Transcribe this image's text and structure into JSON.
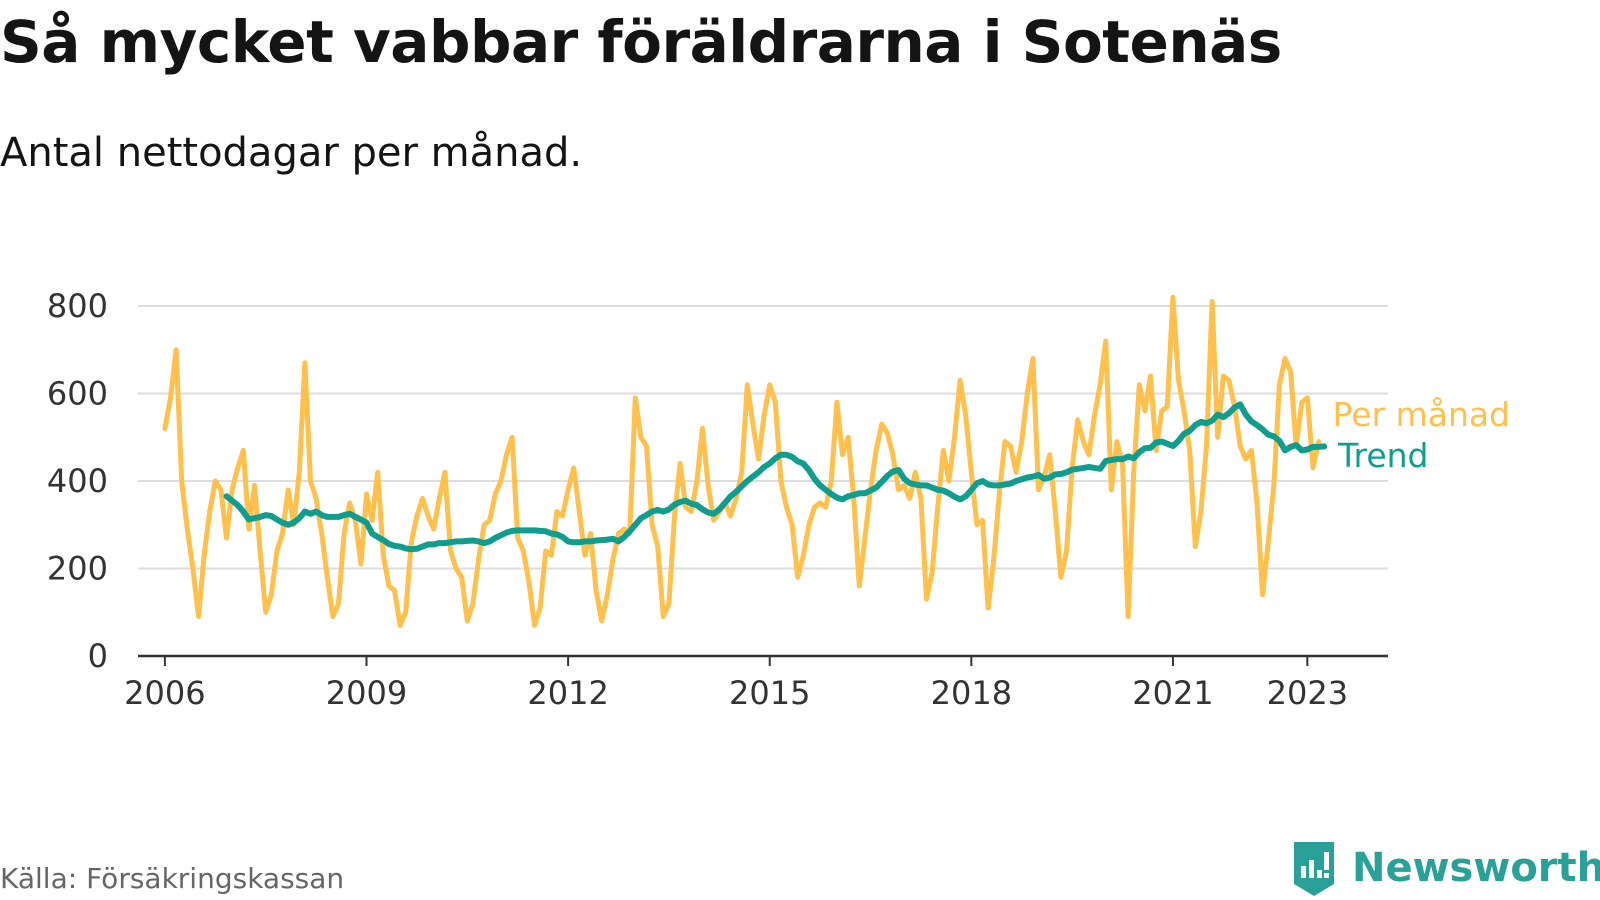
{
  "title": "Så mycket vabbar föräldrarna i Sotenäs",
  "subtitle": "Antal nettodagar per månad.",
  "source": "Källa: Försäkringskassan",
  "brand": "Newsworthy",
  "colors": {
    "monthly": "#FFC04D",
    "trend": "#109D8E",
    "grid": "#DDDDDD",
    "axis": "#333333",
    "brand": "#2AA198"
  },
  "chart_data": {
    "type": "line",
    "x_unit": "year",
    "xlim": [
      2005.6,
      2024.2
    ],
    "ylim": [
      0,
      800
    ],
    "y_ticks": [
      0,
      200,
      400,
      600,
      800
    ],
    "y_tick_labels": [
      "0",
      "200",
      "400",
      "600",
      "800"
    ],
    "x_ticks": [
      2006,
      2009,
      2012,
      2015,
      2018,
      2021,
      2023
    ],
    "x_tick_labels": [
      "2006",
      "2009",
      "2012",
      "2015",
      "2018",
      "2021",
      "2023"
    ],
    "grid": "horizontal",
    "legend_position": "right, at line ends",
    "series": [
      {
        "name": "Per månad",
        "color": "#FFC04D",
        "start_year": 2006,
        "step_months": 1,
        "values": [
          520,
          590,
          700,
          400,
          290,
          200,
          90,
          230,
          330,
          400,
          380,
          270,
          380,
          430,
          470,
          290,
          390,
          240,
          100,
          140,
          240,
          280,
          380,
          300,
          420,
          670,
          400,
          360,
          280,
          180,
          90,
          120,
          280,
          350,
          310,
          210,
          370,
          310,
          420,
          230,
          160,
          150,
          70,
          100,
          260,
          320,
          360,
          320,
          290,
          360,
          420,
          240,
          200,
          180,
          80,
          120,
          220,
          300,
          310,
          370,
          400,
          460,
          500,
          270,
          240,
          170,
          70,
          110,
          240,
          230,
          330,
          320,
          380,
          430,
          330,
          230,
          280,
          150,
          80,
          140,
          220,
          280,
          290,
          280,
          590,
          500,
          480,
          300,
          250,
          90,
          120,
          320,
          440,
          340,
          330,
          400,
          520,
          390,
          310,
          330,
          350,
          320,
          360,
          420,
          620,
          530,
          450,
          550,
          620,
          580,
          400,
          340,
          300,
          180,
          230,
          300,
          340,
          350,
          340,
          400,
          580,
          460,
          500,
          360,
          160,
          270,
          380,
          470,
          530,
          510,
          460,
          380,
          390,
          360,
          420,
          360,
          130,
          190,
          340,
          470,
          400,
          500,
          630,
          550,
          420,
          300,
          310,
          110,
          220,
          370,
          490,
          480,
          420,
          490,
          600,
          680,
          380,
          410,
          460,
          330,
          180,
          240,
          430,
          540,
          490,
          460,
          550,
          620,
          720,
          380,
          490,
          440,
          90,
          420,
          620,
          560,
          640,
          470,
          560,
          570,
          820,
          630,
          560,
          470,
          250,
          330,
          480,
          810,
          500,
          640,
          630,
          570,
          480,
          450,
          470,
          350,
          140,
          260,
          390,
          620,
          680,
          650,
          480,
          580,
          590,
          430,
          490
        ]
      },
      {
        "name": "Trend",
        "color": "#109D8E",
        "start_year": 2006.917,
        "step_months": 1,
        "values": [
          365,
          355,
          345,
          330,
          312,
          315,
          318,
          322,
          320,
          312,
          305,
          300,
          305,
          315,
          330,
          325,
          330,
          322,
          318,
          318,
          318,
          322,
          325,
          318,
          312,
          305,
          280,
          272,
          265,
          256,
          252,
          250,
          246,
          244,
          245,
          250,
          255,
          255,
          258,
          258,
          260,
          262,
          262,
          263,
          264,
          262,
          258,
          262,
          270,
          276,
          282,
          286,
          287,
          287,
          287,
          287,
          286,
          285,
          280,
          278,
          272,
          262,
          260,
          260,
          262,
          262,
          264,
          265,
          266,
          268,
          262,
          272,
          285,
          300,
          315,
          322,
          330,
          334,
          330,
          335,
          346,
          352,
          355,
          348,
          345,
          335,
          328,
          325,
          335,
          350,
          365,
          375,
          388,
          400,
          410,
          420,
          432,
          440,
          452,
          460,
          460,
          455,
          445,
          440,
          425,
          405,
          390,
          380,
          370,
          362,
          358,
          365,
          368,
          372,
          372,
          378,
          385,
          398,
          412,
          422,
          425,
          405,
          395,
          392,
          390,
          390,
          385,
          380,
          378,
          372,
          364,
          358,
          365,
          380,
          395,
          400,
          392,
          390,
          390,
          392,
          394,
          400,
          404,
          408,
          410,
          414,
          405,
          408,
          415,
          416,
          420,
          426,
          428,
          430,
          432,
          430,
          428,
          446,
          448,
          450,
          450,
          456,
          452,
          466,
          475,
          476,
          488,
          490,
          485,
          480,
          492,
          508,
          515,
          528,
          535,
          532,
          538,
          552,
          546,
          555,
          568,
          575,
          552,
          536,
          528,
          518,
          506,
          502,
          492,
          470,
          478,
          482,
          470,
          472,
          478,
          478,
          479
        ]
      }
    ]
  }
}
